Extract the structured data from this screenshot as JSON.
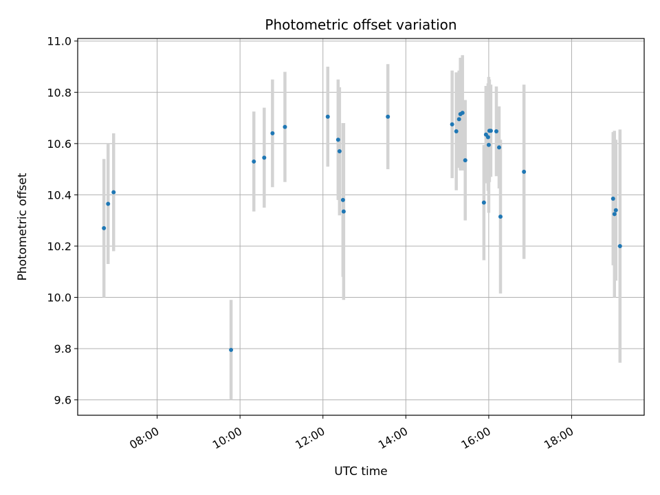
{
  "chart_data": {
    "type": "scatter",
    "title": "Photometric offset variation",
    "xlabel": "UTC time",
    "ylabel": "Photometric offset",
    "x_axis_type": "time",
    "xlim": [
      "06:05",
      "19:45"
    ],
    "ylim": [
      9.54,
      11.01
    ],
    "grid": true,
    "x_ticks": [
      "08:00",
      "10:00",
      "12:00",
      "14:00",
      "16:00",
      "18:00"
    ],
    "y_ticks": [
      "9.6",
      "9.8",
      "10.0",
      "10.2",
      "10.4",
      "10.6",
      "10.8",
      "11.0"
    ],
    "point_color": "#1f77b4",
    "errorbar_color": "#d3d3d3",
    "points": [
      {
        "t": "06:43",
        "y": 10.27,
        "err": 0.27
      },
      {
        "t": "06:49",
        "y": 10.365,
        "err": 0.235
      },
      {
        "t": "06:57",
        "y": 10.41,
        "err": 0.23
      },
      {
        "t": "09:47",
        "y": 9.795,
        "err": 0.195
      },
      {
        "t": "10:20",
        "y": 10.53,
        "err": 0.195
      },
      {
        "t": "10:35",
        "y": 10.545,
        "err": 0.195
      },
      {
        "t": "10:47",
        "y": 10.64,
        "err": 0.21
      },
      {
        "t": "11:05",
        "y": 10.665,
        "err": 0.215
      },
      {
        "t": "12:07",
        "y": 10.705,
        "err": 0.195
      },
      {
        "t": "12:22",
        "y": 10.615,
        "err": 0.235
      },
      {
        "t": "12:24",
        "y": 10.57,
        "err": 0.25
      },
      {
        "t": "12:29",
        "y": 10.38,
        "err": 0.3
      },
      {
        "t": "12:30",
        "y": 10.335,
        "err": 0.345
      },
      {
        "t": "13:34",
        "y": 10.705,
        "err": 0.205
      },
      {
        "t": "15:07",
        "y": 10.675,
        "err": 0.21
      },
      {
        "t": "15:13",
        "y": 10.648,
        "err": 0.23
      },
      {
        "t": "15:17",
        "y": 10.695,
        "err": 0.19
      },
      {
        "t": "15:19",
        "y": 10.715,
        "err": 0.22
      },
      {
        "t": "15:22",
        "y": 10.72,
        "err": 0.225
      },
      {
        "t": "15:26",
        "y": 10.535,
        "err": 0.235
      },
      {
        "t": "15:53",
        "y": 10.37,
        "err": 0.225
      },
      {
        "t": "15:56",
        "y": 10.635,
        "err": 0.19
      },
      {
        "t": "15:59",
        "y": 10.625,
        "err": 0.21
      },
      {
        "t": "16:00",
        "y": 10.595,
        "err": 0.265
      },
      {
        "t": "16:01",
        "y": 10.65,
        "err": 0.2
      },
      {
        "t": "16:03",
        "y": 10.65,
        "err": 0.18
      },
      {
        "t": "16:11",
        "y": 10.648,
        "err": 0.175
      },
      {
        "t": "16:15",
        "y": 10.585,
        "err": 0.16
      },
      {
        "t": "16:17",
        "y": 10.315,
        "err": 0.3
      },
      {
        "t": "16:51",
        "y": 10.49,
        "err": 0.34
      },
      {
        "t": "19:00",
        "y": 10.385,
        "err": 0.26
      },
      {
        "t": "19:02",
        "y": 10.325,
        "err": 0.325
      },
      {
        "t": "19:04",
        "y": 10.34,
        "err": 0.275
      },
      {
        "t": "19:10",
        "y": 10.2,
        "err": 0.455
      }
    ]
  }
}
